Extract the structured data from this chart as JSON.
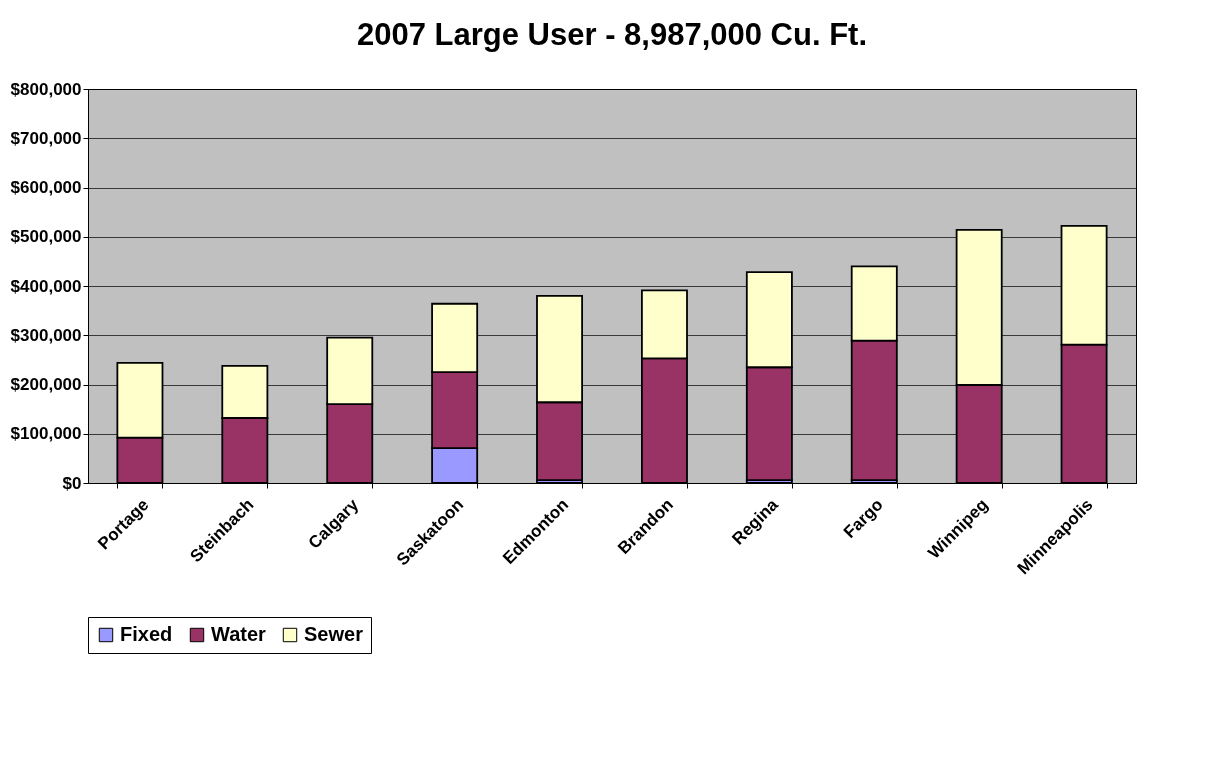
{
  "chart_data": {
    "type": "bar",
    "title": "2007 Large User - 8,987,000 Cu. Ft.",
    "stacked": true,
    "categories": [
      "Portage",
      "Steinbach",
      "Calgary",
      "Saskatoon",
      "Edmonton",
      "Brandon",
      "Regina",
      "Fargo",
      "Winnipeg",
      "Minneapolis"
    ],
    "series": [
      {
        "name": "Fixed",
        "color": "#9999ff",
        "values": [
          0,
          0,
          0,
          71000,
          6000,
          0,
          6000,
          6000,
          0,
          0
        ]
      },
      {
        "name": "Water",
        "color": "#993366",
        "values": [
          92000,
          132000,
          160000,
          154000,
          158000,
          253000,
          229000,
          283000,
          199000,
          281000
        ]
      },
      {
        "name": "Sewer",
        "color": "#ffffcc",
        "values": [
          152000,
          106000,
          135000,
          139000,
          216000,
          138000,
          193000,
          151000,
          315000,
          241000
        ]
      }
    ],
    "ylim": [
      0,
      800000
    ],
    "yticks": [
      {
        "value": 0,
        "label": "$0"
      },
      {
        "value": 100000,
        "label": "$100,000"
      },
      {
        "value": 200000,
        "label": "$200,000"
      },
      {
        "value": 300000,
        "label": "$300,000"
      },
      {
        "value": 400000,
        "label": "$400,000"
      },
      {
        "value": 500000,
        "label": "$500,000"
      },
      {
        "value": 600000,
        "label": "$600,000"
      },
      {
        "value": 700000,
        "label": "$700,000"
      },
      {
        "value": 800000,
        "label": "$800,000"
      }
    ],
    "grid": "y",
    "legend": "bottom"
  }
}
